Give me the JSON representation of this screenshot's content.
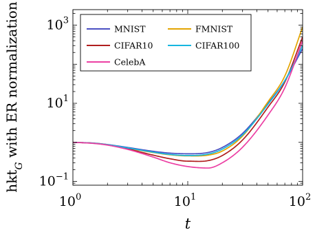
{
  "chart_data": {
    "type": "line",
    "title": "",
    "xlabel": "t",
    "ylabel": "hkt_G with ER normalization",
    "xscale": "log",
    "yscale": "log",
    "xlim": [
      1,
      100
    ],
    "ylim": [
      0.08,
      2500
    ],
    "grid": false,
    "legend_position": "top-left",
    "x_ticks": [
      {
        "value": 1,
        "base": "10",
        "exp": "0"
      },
      {
        "value": 10,
        "base": "10",
        "exp": "1"
      },
      {
        "value": 100,
        "base": "10",
        "exp": "2"
      }
    ],
    "y_ticks": [
      {
        "value": 0.1,
        "base": "10",
        "exp": "−1"
      },
      {
        "value": 10,
        "base": "10",
        "exp": "1"
      },
      {
        "value": 1000,
        "base": "10",
        "exp": "3"
      }
    ],
    "series": [
      {
        "name": "MNIST",
        "color": "#4a4fc2",
        "x": [
          1,
          1.5,
          2,
          3,
          5,
          7,
          10,
          15,
          20,
          30,
          50,
          70,
          100
        ],
        "y": [
          1.0,
          0.96,
          0.88,
          0.74,
          0.59,
          0.53,
          0.51,
          0.55,
          0.74,
          1.7,
          10,
          38,
          250
        ]
      },
      {
        "name": "FMNIST",
        "color": "#e3a400",
        "x": [
          1,
          1.5,
          2,
          3,
          5,
          7,
          10,
          15,
          20,
          30,
          50,
          70,
          100
        ],
        "y": [
          1.0,
          0.95,
          0.87,
          0.71,
          0.55,
          0.48,
          0.45,
          0.47,
          0.6,
          1.45,
          11,
          50,
          900
        ]
      },
      {
        "name": "CIFAR10",
        "color": "#b01e1e",
        "x": [
          1,
          1.5,
          2,
          3,
          5,
          7,
          10,
          15,
          20,
          30,
          50,
          70,
          100
        ],
        "y": [
          1.0,
          0.95,
          0.86,
          0.68,
          0.47,
          0.38,
          0.33,
          0.34,
          0.46,
          1.15,
          8,
          35,
          500
        ]
      },
      {
        "name": "CIFAR100",
        "color": "#16b6e0",
        "x": [
          1,
          1.5,
          2,
          3,
          5,
          7,
          10,
          15,
          20,
          30,
          50,
          70,
          100
        ],
        "y": [
          1.0,
          0.95,
          0.87,
          0.72,
          0.56,
          0.49,
          0.46,
          0.5,
          0.67,
          1.55,
          9.5,
          38,
          300
        ]
      },
      {
        "name": "CelebA",
        "color": "#ec3fa3",
        "x": [
          1,
          1.5,
          2,
          3,
          5,
          7,
          10,
          15,
          20,
          30,
          50,
          70,
          100
        ],
        "y": [
          1.0,
          0.94,
          0.85,
          0.66,
          0.42,
          0.3,
          0.24,
          0.22,
          0.3,
          0.75,
          5,
          25,
          400
        ]
      }
    ],
    "legend_entries": [
      "MNIST",
      "FMNIST",
      "CIFAR10",
      "CIFAR100",
      "CelebA"
    ]
  }
}
